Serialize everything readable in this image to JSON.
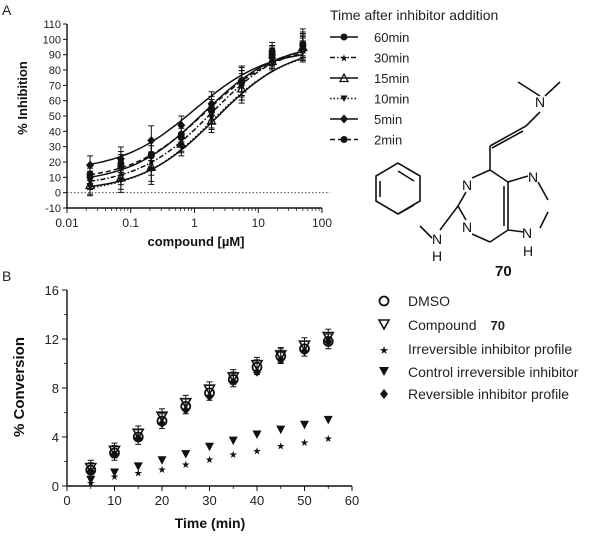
{
  "chart_data": [
    {
      "panel": "A",
      "type": "line",
      "xscale": "log",
      "xlabel": "compound [µM]",
      "ylabel": "% Inhibition",
      "xlim": [
        0.01,
        100
      ],
      "ylim": [
        -10,
        110
      ],
      "xticks": [
        "0.01",
        "0.1",
        "1",
        "10",
        "100"
      ],
      "yticks": [
        "-10",
        "0",
        "10",
        "20",
        "30",
        "40",
        "50",
        "60",
        "70",
        "80",
        "90",
        "100",
        "110"
      ],
      "x": [
        0.023,
        0.07,
        0.21,
        0.62,
        1.85,
        5.5,
        16.5,
        50
      ],
      "legend_title": "Time after inhibitor addition",
      "series": [
        {
          "name": "60min",
          "marker": "circle",
          "dash": "solid",
          "values": [
            10,
            17,
            24,
            36,
            55,
            72,
            90,
            97
          ]
        },
        {
          "name": "30min",
          "marker": "star",
          "dash": "dashdot",
          "values": [
            8,
            13,
            21,
            33,
            50,
            70,
            89,
            99
          ]
        },
        {
          "name": "15min",
          "marker": "triangle-up",
          "dash": "solid",
          "values": [
            5,
            10,
            17,
            32,
            47,
            68,
            86,
            95
          ]
        },
        {
          "name": "10min",
          "marker": "triangle-down",
          "dash": "dotted",
          "values": [
            4,
            8,
            15,
            30,
            49,
            70,
            87,
            94
          ]
        },
        {
          "name": "5min",
          "marker": "diamond",
          "dash": "solid",
          "values": [
            18,
            22,
            34,
            44,
            58,
            73,
            88,
            93
          ]
        },
        {
          "name": "2min",
          "marker": "circle",
          "dash": "dashed",
          "values": [
            12,
            19,
            25,
            38,
            53,
            73,
            92,
            96
          ]
        }
      ],
      "error_bar": 6,
      "baseline": 0
    },
    {
      "panel": "B",
      "type": "scatter",
      "xlabel": "Time (min)",
      "ylabel": "% Conversion",
      "xlim": [
        0,
        60
      ],
      "ylim": [
        0,
        16
      ],
      "xticks": [
        "0",
        "10",
        "20",
        "30",
        "40",
        "50",
        "60"
      ],
      "yticks": [
        "0",
        "4",
        "8",
        "12",
        "16"
      ],
      "x": [
        5,
        10,
        15,
        20,
        25,
        30,
        35,
        40,
        45,
        50,
        55
      ],
      "series": [
        {
          "name": "DMSO",
          "marker": "open-circle",
          "values": [
            1.3,
            2.7,
            4.0,
            5.3,
            6.5,
            7.6,
            8.7,
            9.7,
            10.6,
            11.2,
            11.8
          ]
        },
        {
          "name": "Compound 70",
          "marker": "open-triangle-down",
          "values": [
            1.5,
            2.9,
            4.3,
            5.7,
            6.8,
            7.9,
            8.9,
            9.9,
            10.7,
            11.5,
            12.2
          ]
        },
        {
          "name": "Irreversible inhibitor profile",
          "marker": "star",
          "values": [
            0.3,
            0.8,
            1.1,
            1.4,
            1.8,
            2.2,
            2.6,
            2.9,
            3.3,
            3.6,
            3.9
          ]
        },
        {
          "name": "Control irreversible inhibitor",
          "marker": "filled-triangle-down",
          "values": [
            0.5,
            1.1,
            1.6,
            2.1,
            2.6,
            3.2,
            3.7,
            4.2,
            4.6,
            5.0,
            5.4
          ]
        },
        {
          "name": "Reversible inhibitor profile",
          "marker": "filled-diamond",
          "values": [
            1.2,
            2.6,
            3.9,
            5.1,
            6.2,
            7.3,
            8.5,
            9.3,
            10.3,
            11.0,
            11.8
          ]
        }
      ],
      "error_bar": 0.6
    }
  ],
  "panel_labels": {
    "a": "A",
    "b": "B"
  },
  "legend_b": {
    "dmso": "DMSO",
    "compound_prefix": "Compound",
    "compound_id": "70",
    "irreversible": "Irreversible inhibitor profile",
    "control": "Control irreversible inhibitor",
    "reversible": "Reversible inhibitor profile"
  },
  "structure": {
    "compound_number": "70",
    "atoms": {
      "n_dimethyl": "N",
      "n1": "N",
      "n3": "N",
      "n7": "N",
      "n9": "N",
      "h9": "H",
      "nh_n": "N",
      "nh_h": "H"
    }
  }
}
